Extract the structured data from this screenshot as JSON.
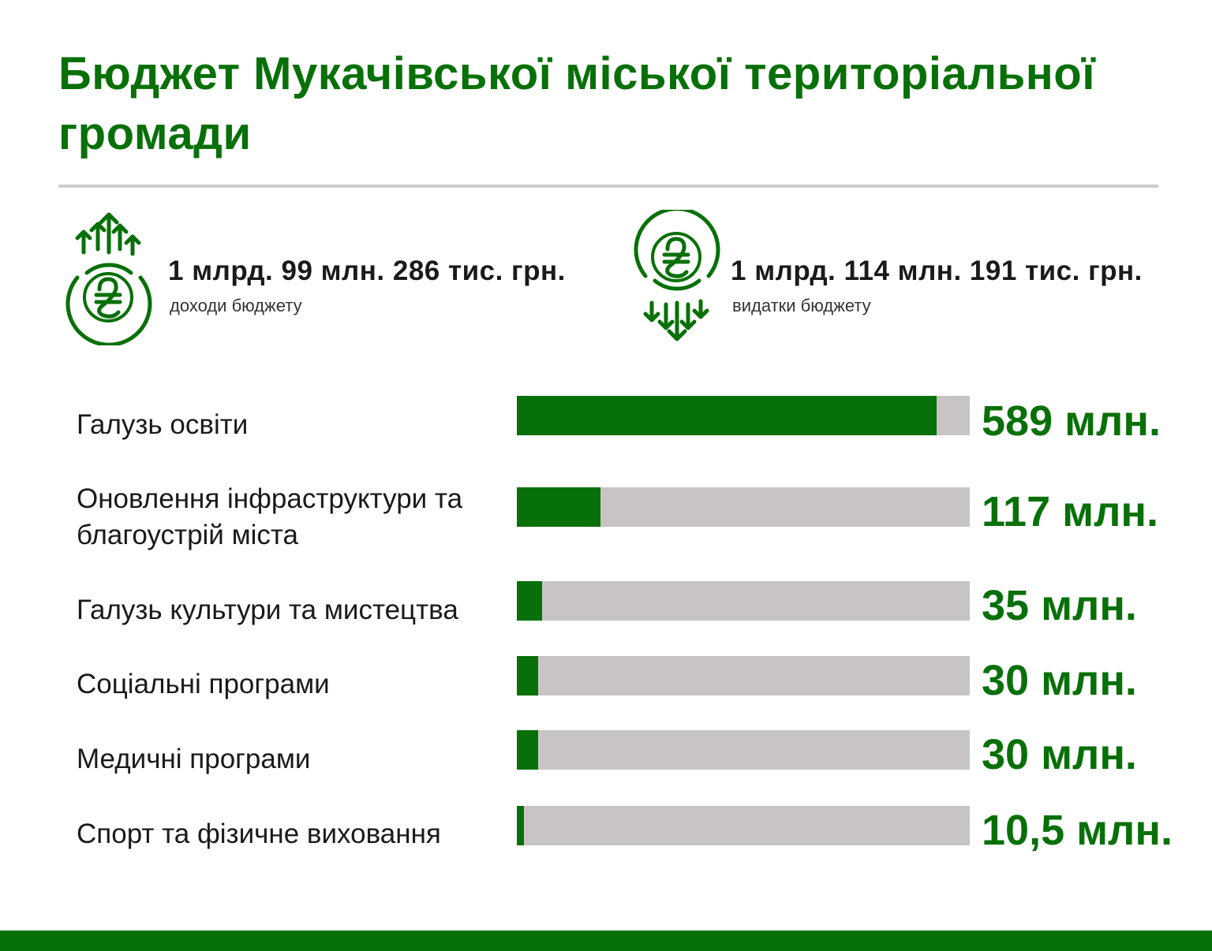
{
  "header": {
    "title": "Бюджет Мукачівської міської територіальної громади"
  },
  "summary": {
    "income": {
      "value": "1 млрд. 99 млн. 286 тис. грн.",
      "label": "доходи бюджету",
      "icon": "hryvnia-coin-arrows-up-icon"
    },
    "expenses": {
      "value": "1 млрд. 114 млн. 191 тис. грн.",
      "label": "видатки бюджету",
      "icon": "hryvnia-coin-arrows-down-icon"
    }
  },
  "colors": {
    "accent": "#087008",
    "track": "#c8c4c4",
    "divider": "#cccccc"
  },
  "chart_data": {
    "type": "bar",
    "orientation": "horizontal",
    "categories": [
      "Галузь освіти",
      "Оновлення інфраструктури та благоустрій міста",
      "Галузь культури та мистецтва",
      "Соціальні програми",
      "Медичні програми",
      "Спорт та фізичне виховання"
    ],
    "values": [
      589,
      117,
      35,
      30,
      30,
      10.5
    ],
    "value_labels": [
      "589 млн.",
      "117 млн.",
      "35 млн.",
      "30 млн.",
      "30 млн.",
      "10,5 млн."
    ],
    "xlim": [
      0,
      635
    ],
    "unit": "млн.",
    "grid": false,
    "legend": "none"
  }
}
